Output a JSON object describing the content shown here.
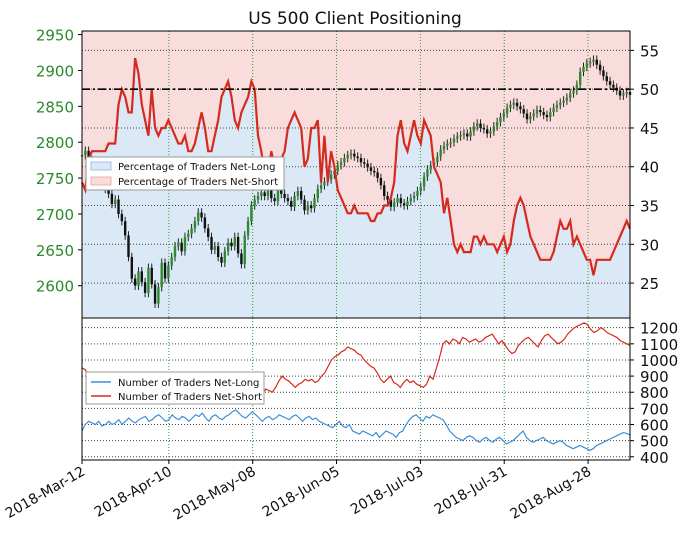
{
  "colors": {
    "price_axis": "#2a8a2a",
    "long_fill": "#dbe9f7",
    "short_fill": "#f9dcdc",
    "net_short_line": "#d62a1e",
    "net_long_line": "#3a8fd9",
    "grid_green": "#2e9c2e",
    "grid_black": "#444444"
  },
  "chart_data": [
    {
      "type": "line",
      "title": "US 500 Client Positioning",
      "left_axis_ticks": [
        "2950",
        "2900",
        "2850",
        "2800",
        "2750",
        "2700",
        "2650",
        "2600"
      ],
      "left_axis_values": [
        2950,
        2900,
        2850,
        2800,
        2750,
        2700,
        2650,
        2600
      ],
      "left_ylim": [
        2555,
        2955
      ],
      "right_axis_ticks": [
        "55",
        "50",
        "45",
        "40",
        "35",
        "30",
        "25"
      ],
      "right_axis_values": [
        55,
        50,
        45,
        40,
        35,
        30,
        25
      ],
      "right_ylim": [
        20.5,
        57.5
      ],
      "legend": [
        "Percentage of Traders Net-Long",
        "Percentage of Traders Net-Short"
      ],
      "reference_line": 50,
      "series": [
        {
          "name": "Percentage of Traders Net-Short",
          "axis": "right",
          "values": [
            38,
            37,
            41,
            42,
            42,
            42,
            42,
            42,
            43,
            43,
            43,
            48,
            50,
            49,
            47,
            47,
            54,
            52,
            48,
            46,
            44,
            50,
            45,
            44,
            45,
            45,
            46,
            45,
            44,
            43,
            43,
            44,
            42,
            42,
            43,
            45,
            47,
            45,
            42,
            42,
            44,
            46,
            49,
            50,
            51,
            49,
            46,
            45,
            47,
            48,
            49,
            51,
            50,
            44,
            42,
            39,
            39,
            42,
            40,
            41,
            41,
            42,
            45,
            46,
            47,
            46,
            45,
            40,
            41,
            45,
            45,
            46,
            38,
            44,
            38,
            42,
            40,
            37,
            36,
            35,
            34,
            34,
            35,
            34,
            34,
            34,
            34,
            33,
            33,
            34,
            34,
            35,
            35,
            36,
            38,
            44,
            46,
            43,
            42,
            44,
            46,
            44,
            43,
            46,
            45,
            44,
            40,
            39,
            38,
            34,
            36,
            33,
            30,
            29,
            30,
            29,
            29,
            29,
            31,
            31,
            30,
            31,
            30,
            30,
            30,
            29,
            30,
            31,
            29,
            30,
            33,
            35,
            36,
            35,
            33,
            31,
            30,
            29,
            28,
            28,
            28,
            28,
            29,
            31,
            33,
            32,
            32,
            33,
            30,
            31,
            30,
            29,
            28,
            28,
            26,
            28,
            28,
            28,
            28,
            28,
            29,
            30,
            31,
            32,
            33,
            32
          ]
        },
        {
          "name": "Percentage of Traders Net-Long",
          "axis": "right",
          "values": [
            62,
            63,
            59,
            58,
            58,
            58,
            58,
            58,
            57,
            57,
            57,
            52,
            50,
            51,
            53,
            53,
            46,
            48,
            52,
            54,
            56,
            50,
            55,
            56,
            55,
            55,
            54,
            55,
            56,
            57,
            57,
            56,
            58,
            58,
            57,
            55,
            53,
            55,
            58,
            58,
            56,
            54,
            51,
            50,
            49,
            51,
            54,
            55,
            53,
            52,
            51,
            49,
            50,
            56,
            58,
            61,
            61,
            58,
            60,
            59,
            59,
            58,
            55,
            54,
            53,
            54,
            55,
            60,
            59,
            55,
            55,
            54,
            62,
            56,
            62,
            58,
            60,
            63,
            64,
            65,
            66,
            66,
            65,
            66,
            66,
            66,
            66,
            67,
            67,
            66,
            66,
            65,
            65,
            64,
            62,
            56,
            54,
            57,
            58,
            56,
            54,
            56,
            57,
            54,
            55,
            56,
            60,
            61,
            62,
            66,
            64,
            67,
            70,
            71,
            70,
            71,
            71,
            71,
            69,
            69,
            70,
            69,
            70,
            70,
            70,
            71,
            70,
            69,
            71,
            70,
            67,
            65,
            64,
            65,
            67,
            69,
            70,
            71,
            72,
            72,
            72,
            72,
            71,
            69,
            67,
            68,
            68,
            67,
            70,
            69,
            70,
            71,
            72,
            72,
            74,
            72,
            72,
            72,
            72,
            72,
            71,
            70,
            69,
            68,
            67,
            68
          ]
        },
        {
          "name": "US 500 (price)",
          "axis": "left",
          "values": [
            2782,
            2788,
            2775,
            2762,
            2748,
            2752,
            2740,
            2735,
            2728,
            2714,
            2720,
            2700,
            2690,
            2670,
            2640,
            2610,
            2600,
            2620,
            2605,
            2590,
            2625,
            2602,
            2575,
            2598,
            2632,
            2610,
            2628,
            2640,
            2655,
            2660,
            2648,
            2668,
            2672,
            2680,
            2690,
            2702,
            2695,
            2680,
            2668,
            2650,
            2655,
            2640,
            2632,
            2648,
            2660,
            2655,
            2668,
            2645,
            2630,
            2670,
            2690,
            2712,
            2720,
            2725,
            2730,
            2725,
            2740,
            2722,
            2718,
            2735,
            2728,
            2722,
            2718,
            2710,
            2725,
            2732,
            2720,
            2705,
            2712,
            2708,
            2722,
            2735,
            2740,
            2745,
            2748,
            2755,
            2760,
            2768,
            2772,
            2778,
            2782,
            2784,
            2780,
            2778,
            2772,
            2770,
            2765,
            2760,
            2758,
            2750,
            2740,
            2725,
            2720,
            2710,
            2716,
            2722,
            2715,
            2712,
            2718,
            2722,
            2725,
            2732,
            2738,
            2752,
            2762,
            2768,
            2772,
            2780,
            2790,
            2795,
            2798,
            2800,
            2805,
            2808,
            2810,
            2812,
            2808,
            2815,
            2822,
            2826,
            2820,
            2818,
            2812,
            2815,
            2822,
            2828,
            2835,
            2840,
            2848,
            2852,
            2855,
            2850,
            2846,
            2840,
            2832,
            2836,
            2840,
            2845,
            2842,
            2838,
            2835,
            2842,
            2848,
            2852,
            2855,
            2858,
            2862,
            2868,
            2872,
            2880,
            2898,
            2905,
            2910,
            2912,
            2915,
            2908,
            2900,
            2892,
            2885,
            2880,
            2876,
            2872,
            2865,
            2868,
            2870,
            2866
          ]
        }
      ],
      "x_tick_labels": [
        "2018-Mar-12",
        "2018-Apr-10",
        "2018-May-08",
        "2018-Jun-05",
        "2018-Jul-03",
        "2018-Jul-31",
        "2018-Aug-28"
      ],
      "x_tick_days": [
        0,
        29,
        57,
        85,
        113,
        141,
        169
      ],
      "x_range_days": [
        0,
        183
      ],
      "grid": true
    },
    {
      "type": "line",
      "legend": [
        "Number of Traders Net-Long",
        "Number of Traders Net-Short"
      ],
      "right_axis_ticks": [
        "1200",
        "1100",
        "1000",
        "900",
        "800",
        "700",
        "600",
        "500",
        "400"
      ],
      "right_axis_values": [
        1200,
        1100,
        1000,
        900,
        800,
        700,
        600,
        500,
        400
      ],
      "ylim": [
        380,
        1260
      ],
      "grid": true,
      "series": [
        {
          "name": "Number of Traders Net-Short",
          "axis": "right",
          "values": [
            950,
            940,
            890,
            880,
            870,
            860,
            880,
            870,
            860,
            850,
            840,
            860,
            900,
            880,
            870,
            880,
            890,
            880,
            900,
            870,
            890,
            900,
            880,
            870,
            900,
            880,
            860,
            870,
            900,
            860,
            840,
            850,
            870,
            900,
            880,
            890,
            870,
            880,
            860,
            850,
            870,
            880,
            900,
            860,
            850,
            840,
            880,
            870,
            860,
            880,
            900,
            870,
            850,
            820,
            800,
            790,
            820,
            810,
            800,
            830,
            870,
            900,
            880,
            870,
            850,
            830,
            850,
            860,
            880,
            870,
            880,
            860,
            870,
            900,
            920,
            960,
            1000,
            1020,
            1030,
            1050,
            1060,
            1080,
            1070,
            1060,
            1040,
            1030,
            1000,
            980,
            960,
            950,
            920,
            880,
            860,
            880,
            900,
            860,
            850,
            830,
            860,
            880,
            860,
            870,
            850,
            840,
            830,
            850,
            900,
            880,
            950,
            1020,
            1100,
            1120,
            1100,
            1130,
            1120,
            1100,
            1140,
            1130,
            1110,
            1120,
            1130,
            1110,
            1120,
            1140,
            1150,
            1160,
            1130,
            1100,
            1120,
            1090,
            1060,
            1040,
            1050,
            1090,
            1110,
            1130,
            1140,
            1120,
            1100,
            1080,
            1120,
            1150,
            1160,
            1140,
            1120,
            1100,
            1110,
            1130,
            1160,
            1180,
            1200,
            1210,
            1220,
            1230,
            1220,
            1190,
            1170,
            1180,
            1200,
            1190,
            1170,
            1160,
            1150,
            1140,
            1120,
            1110,
            1100,
            1090
          ]
        },
        {
          "name": "Number of Traders Net-Long",
          "axis": "right",
          "values": [
            560,
            600,
            620,
            610,
            600,
            620,
            590,
            600,
            620,
            600,
            610,
            630,
            600,
            620,
            640,
            620,
            610,
            630,
            640,
            650,
            620,
            630,
            650,
            660,
            640,
            620,
            630,
            660,
            640,
            630,
            650,
            640,
            620,
            640,
            660,
            650,
            670,
            640,
            620,
            650,
            660,
            640,
            630,
            650,
            660,
            680,
            690,
            670,
            650,
            640,
            660,
            680,
            660,
            640,
            620,
            640,
            650,
            630,
            640,
            660,
            650,
            640,
            630,
            650,
            660,
            640,
            620,
            640,
            650,
            630,
            640,
            620,
            610,
            600,
            590,
            580,
            600,
            620,
            590,
            580,
            600,
            560,
            550,
            540,
            560,
            550,
            540,
            530,
            550,
            520,
            540,
            560,
            550,
            540,
            520,
            550,
            560,
            600,
            630,
            650,
            660,
            640,
            620,
            650,
            640,
            660,
            650,
            640,
            630,
            600,
            560,
            540,
            520,
            510,
            500,
            520,
            530,
            520,
            500,
            490,
            510,
            520,
            500,
            490,
            510,
            520,
            500,
            480,
            490,
            500,
            520,
            540,
            560,
            520,
            500,
            490,
            500,
            510,
            520,
            500,
            490,
            480,
            490,
            500,
            490,
            470,
            460,
            450,
            460,
            470,
            460,
            450,
            440,
            450,
            470,
            480,
            490,
            500,
            510,
            520,
            530,
            540,
            550,
            545,
            535
          ]
        }
      ]
    }
  ]
}
